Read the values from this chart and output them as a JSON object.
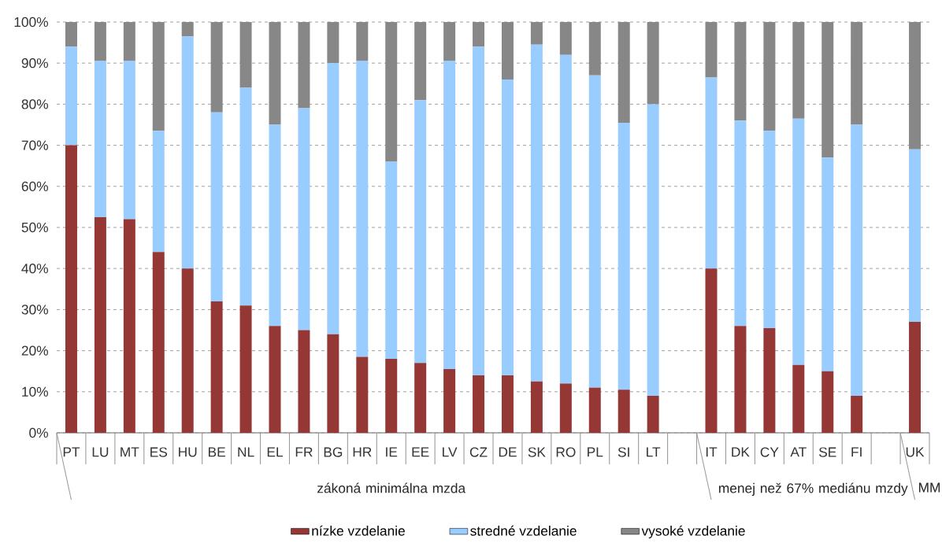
{
  "chart_data": {
    "type": "bar",
    "stacked": true,
    "categories": [
      "PT",
      "LU",
      "MT",
      "ES",
      "HU",
      "BE",
      "NL",
      "EL",
      "FR",
      "BG",
      "HR",
      "IE",
      "EE",
      "LV",
      "CZ",
      "DE",
      "SK",
      "RO",
      "PL",
      "SI",
      "LT",
      null,
      "IT",
      "DK",
      "CY",
      "AT",
      "SE",
      "FI",
      null,
      "UK"
    ],
    "series": [
      {
        "name": "nízke vzdelanie",
        "color": "#953735",
        "values": [
          70,
          52.5,
          52,
          44,
          40,
          32,
          31,
          26,
          25,
          24,
          18.5,
          18,
          17,
          15.5,
          14,
          14,
          12.5,
          12,
          11,
          10.5,
          9,
          null,
          40,
          26,
          25.5,
          16.5,
          15,
          9,
          null,
          27
        ]
      },
      {
        "name": "stredné vzdelanie",
        "color": "#99ccff",
        "values": [
          24,
          38,
          38.5,
          29.5,
          56.5,
          46,
          53,
          49,
          54,
          66,
          72,
          48,
          64,
          75,
          80,
          72,
          82,
          80,
          76,
          65,
          71,
          null,
          46.5,
          50,
          48,
          60,
          52,
          66,
          null,
          42
        ]
      },
      {
        "name": "vysoké vzdelanie",
        "color": "#878787",
        "values": [
          6,
          9.5,
          9.5,
          26.5,
          3.5,
          22,
          16,
          25,
          21,
          10,
          9.5,
          34,
          19,
          9.5,
          6,
          14,
          5.5,
          8,
          13,
          24.5,
          20,
          null,
          13.5,
          24,
          26.5,
          23.5,
          33,
          25,
          null,
          31
        ]
      }
    ],
    "ylim": [
      0,
      100
    ],
    "yticks": [
      {
        "value": 0,
        "label": "0%"
      },
      {
        "value": 10,
        "label": "10%"
      },
      {
        "value": 20,
        "label": "20%"
      },
      {
        "value": 30,
        "label": "30%"
      },
      {
        "value": 40,
        "label": "40%"
      },
      {
        "value": 50,
        "label": "50%"
      },
      {
        "value": 60,
        "label": "60%"
      },
      {
        "value": 70,
        "label": "70%"
      },
      {
        "value": 80,
        "label": "80%"
      },
      {
        "value": 90,
        "label": "90%"
      },
      {
        "value": 100,
        "label": "100%"
      }
    ],
    "grid": "y",
    "legend": "bottom",
    "annotations": [
      "zákoná minimálna mzda",
      "menej než 67% mediánu mzdy",
      "MM"
    ]
  }
}
